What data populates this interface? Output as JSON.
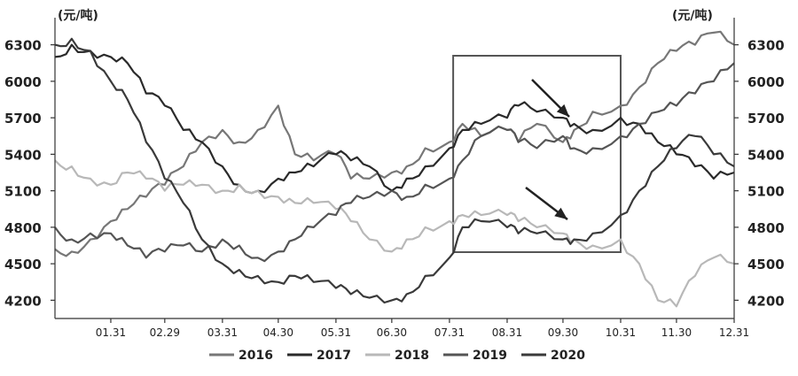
{
  "chart_data": {
    "type": "line",
    "title": "",
    "xlabel": "",
    "y_unit_left": "(元/吨)",
    "y_unit_right": "(元/吨)",
    "ylim": [
      4050,
      6450
    ],
    "yticks": [
      4200,
      4500,
      4800,
      5100,
      5400,
      5700,
      6000,
      6300
    ],
    "x_tick_labels": [
      "01.31",
      "02.29",
      "03.31",
      "04.30",
      "05.31",
      "06.30",
      "07.31",
      "08.31",
      "09.30",
      "10.31",
      "11.30",
      "12.31"
    ],
    "x_tick_days": [
      31,
      60,
      91,
      121,
      152,
      182,
      213,
      244,
      274,
      305,
      335,
      366
    ],
    "x_range_days": [
      1,
      366
    ],
    "grid": false,
    "legend_position": "bottom",
    "highlight_box_days": [
      215,
      305
    ],
    "series": [
      {
        "name": "2016",
        "color": "#777777",
        "width": 2.2,
        "x": [
          1,
          10,
          20,
          31,
          40,
          50,
          60,
          70,
          80,
          91,
          100,
          110,
          121,
          130,
          140,
          152,
          160,
          170,
          182,
          190,
          200,
          213,
          220,
          230,
          244,
          250,
          260,
          274,
          280,
          290,
          305,
          315,
          325,
          335,
          345,
          355,
          366
        ],
        "y": [
          4620,
          4600,
          4700,
          4850,
          4950,
          5050,
          5150,
          5300,
          5500,
          5600,
          5500,
          5600,
          5800,
          5400,
          5350,
          5400,
          5200,
          5200,
          5250,
          5300,
          5450,
          5500,
          5650,
          5550,
          5600,
          5500,
          5650,
          5500,
          5600,
          5750,
          5800,
          5950,
          6150,
          6250,
          6300,
          6400,
          6300
        ]
      },
      {
        "name": "2017",
        "color": "#2a2a2a",
        "width": 2.2,
        "x": [
          1,
          10,
          20,
          31,
          40,
          50,
          60,
          70,
          80,
          91,
          100,
          110,
          121,
          130,
          140,
          152,
          160,
          170,
          182,
          190,
          200,
          213,
          220,
          230,
          244,
          250,
          260,
          274,
          280,
          290,
          305,
          315,
          325,
          335,
          345,
          355,
          366
        ],
        "y": [
          6200,
          6300,
          6250,
          6200,
          6150,
          5900,
          5800,
          5600,
          5500,
          5300,
          5150,
          5100,
          5200,
          5250,
          5300,
          5400,
          5350,
          5300,
          5100,
          5200,
          5300,
          5450,
          5600,
          5650,
          5700,
          5800,
          5750,
          5700,
          5650,
          5600,
          5700,
          5650,
          5500,
          5400,
          5300,
          5200,
          5250
        ]
      },
      {
        "name": "2018",
        "color": "#b8b8b8",
        "width": 2.2,
        "x": [
          1,
          10,
          20,
          31,
          40,
          50,
          60,
          70,
          80,
          91,
          100,
          110,
          121,
          130,
          140,
          152,
          160,
          170,
          182,
          190,
          200,
          213,
          220,
          230,
          244,
          250,
          260,
          274,
          280,
          290,
          305,
          315,
          325,
          335,
          345,
          355,
          366
        ],
        "y": [
          5350,
          5300,
          5200,
          5150,
          5250,
          5200,
          5100,
          5150,
          5150,
          5100,
          5150,
          5100,
          5050,
          5000,
          5000,
          4950,
          4850,
          4700,
          4600,
          4700,
          4800,
          4850,
          4900,
          4900,
          4900,
          4850,
          4800,
          4750,
          4700,
          4650,
          4700,
          4500,
          4200,
          4150,
          4400,
          4550,
          4500
        ]
      },
      {
        "name": "2019",
        "color": "#555555",
        "width": 2.2,
        "x": [
          1,
          10,
          20,
          31,
          40,
          50,
          60,
          70,
          80,
          91,
          100,
          110,
          121,
          130,
          140,
          152,
          160,
          170,
          182,
          190,
          200,
          213,
          220,
          230,
          244,
          250,
          260,
          274,
          280,
          290,
          305,
          315,
          325,
          335,
          345,
          355,
          366
        ],
        "y": [
          4800,
          4700,
          4750,
          4750,
          4650,
          4550,
          4600,
          4650,
          4600,
          4700,
          4650,
          4550,
          4600,
          4700,
          4800,
          4900,
          5000,
          5050,
          5100,
          5050,
          5150,
          5200,
          5350,
          5550,
          5600,
          5500,
          5450,
          5550,
          5450,
          5450,
          5550,
          5650,
          5750,
          5800,
          5900,
          6000,
          6150
        ]
      },
      {
        "name": "2020",
        "color": "#3a3a3a",
        "width": 2.2,
        "x": [
          1,
          10,
          20,
          31,
          40,
          50,
          60,
          70,
          80,
          91,
          100,
          110,
          121,
          130,
          140,
          152,
          160,
          170,
          182,
          190,
          200,
          213,
          220,
          230,
          244,
          250,
          260,
          274,
          280,
          290,
          305,
          315,
          325,
          335,
          345,
          355,
          366
        ],
        "y": [
          6300,
          6350,
          6250,
          6000,
          5850,
          5500,
          5200,
          5000,
          4700,
          4500,
          4450,
          4400,
          4350,
          4400,
          4350,
          4300,
          4250,
          4220,
          4200,
          4250,
          4400,
          4550,
          4800,
          4850,
          4800,
          4750,
          4750,
          4700,
          4700,
          4750,
          4900,
          5100,
          5300,
          5450,
          5550,
          5400,
          5300
        ]
      }
    ]
  }
}
